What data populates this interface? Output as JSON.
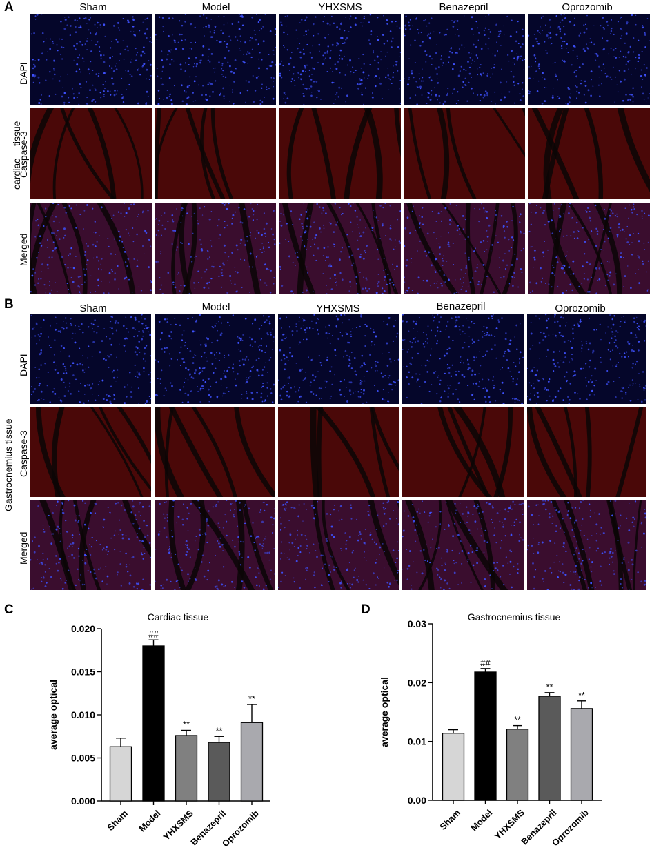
{
  "panels": {
    "A": {
      "letter": "A",
      "columns": [
        "Sham",
        "Model",
        "YHXSMS",
        "Benazepril",
        "Oprozomib"
      ],
      "rows": [
        "DAPI",
        "Caspase-3",
        "Merged"
      ],
      "group_label_1": "cardiac",
      "group_label_2": "tissue"
    },
    "B": {
      "letter": "B",
      "columns": [
        "Sham",
        "Model",
        "YHXSMS",
        "Benazepril",
        "Oprozomib"
      ],
      "rows": [
        "DAPI",
        "Caspase-3",
        "Merged"
      ],
      "group_label": "Gastrocnemius tissue"
    },
    "C": {
      "letter": "C"
    },
    "D": {
      "letter": "D"
    }
  },
  "colors": {
    "dapi_bg": "#05062a",
    "caspase_bg": "#3a0505",
    "merged_bg": "#2a0a24",
    "nuclei": "#3f52ff",
    "vessel": "#0b0606"
  },
  "chart_data": [
    {
      "type": "bar",
      "title": "Cardiac tissue",
      "ylabel": "average optical",
      "xlabel": "",
      "categories": [
        "Sham",
        "Model",
        "YHXSMS",
        "Benazepril",
        "Oprozomib"
      ],
      "values": [
        0.0063,
        0.018,
        0.0076,
        0.0068,
        0.0091
      ],
      "errors": [
        0.001,
        0.0007,
        0.0006,
        0.0007,
        0.0021
      ],
      "annotations": [
        "",
        "##",
        "**",
        "**",
        "**"
      ],
      "bar_colors": [
        "#d6d6d6",
        "#000000",
        "#808080",
        "#5a5a5a",
        "#a9a9ae"
      ],
      "ylim": [
        0,
        0.02
      ],
      "yticks": [
        "0.000",
        "0.005",
        "0.010",
        "0.015",
        "0.020"
      ],
      "grid": false
    },
    {
      "type": "bar",
      "title": "Gastrocnemius tissue",
      "ylabel": "average optical",
      "xlabel": "",
      "categories": [
        "Sham",
        "Model",
        "YHXSMS",
        "Benazepril",
        "Oprozomib"
      ],
      "values": [
        0.0114,
        0.0218,
        0.0121,
        0.0177,
        0.0156
      ],
      "errors": [
        0.0006,
        0.0006,
        0.0006,
        0.0006,
        0.0013
      ],
      "annotations": [
        "",
        "##",
        "**",
        "**",
        "**"
      ],
      "bar_colors": [
        "#d6d6d6",
        "#000000",
        "#808080",
        "#5a5a5a",
        "#a9a9ae"
      ],
      "ylim": [
        0,
        0.03
      ],
      "yticks": [
        "0.00",
        "0.01",
        "0.02",
        "0.03"
      ],
      "grid": false
    }
  ]
}
